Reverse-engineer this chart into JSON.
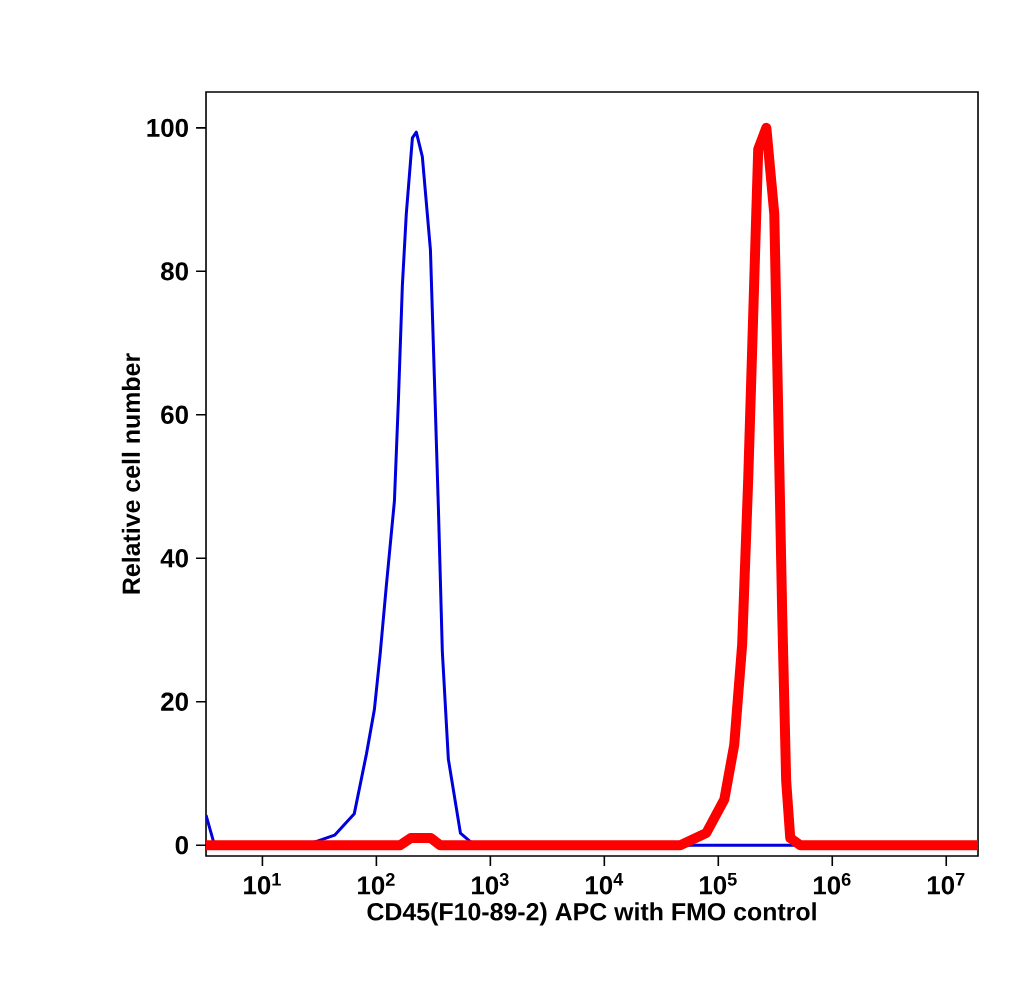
{
  "chart_data": {
    "type": "line",
    "xlabel": "CD45(F10-89-2) APC with FMO control",
    "ylabel": "Relative cell number",
    "log": "x",
    "grid": false,
    "xlim": [
      3.2,
      19000000
    ],
    "ylim": [
      -1.5,
      105
    ],
    "xticks": [
      {
        "value": 10,
        "label": "10$^{1}$"
      },
      {
        "value": 100,
        "label": "10$^{2}$"
      },
      {
        "value": 1000,
        "label": "10$^{3}$"
      },
      {
        "value": 10000,
        "label": "10$^{4}$"
      },
      {
        "value": 100000,
        "label": "10$^{5}$"
      },
      {
        "value": 1000000,
        "label": "10$^{6}$"
      },
      {
        "value": 10000000,
        "label": "10$^{7}$"
      }
    ],
    "yticks": [
      0,
      20,
      40,
      60,
      80,
      100
    ],
    "series": [
      {
        "color": "#0000dd",
        "x": [
          3.2,
          3.8,
          14,
          24,
          43,
          64,
          82,
          96,
          108,
          122,
          144,
          156,
          169,
          183,
          207,
          224,
          253,
          298,
          323,
          350,
          379,
          428,
          546,
          724,
          1080,
          19000000
        ],
        "values": [
          4.2,
          0,
          0,
          0,
          1.4,
          4.4,
          12.8,
          18.9,
          26.7,
          36,
          48,
          62,
          78,
          88,
          98.6,
          99.4,
          96,
          83,
          65,
          47,
          27,
          12,
          1.7,
          0,
          0,
          0
        ]
      },
      {
        "color": "#ff0000",
        "x": [
          3.2,
          162,
          200,
          300,
          363,
          46400,
          78500,
          113000,
          138000,
          162000,
          183000,
          207000,
          224000,
          264000,
          310000,
          336000,
          364000,
          394000,
          428000,
          524000,
          19000000
        ],
        "values": [
          0,
          0,
          1,
          1,
          0,
          0,
          1.7,
          6.4,
          14,
          28,
          51,
          79,
          97,
          100,
          88,
          60,
          32,
          9,
          1,
          0,
          0
        ]
      }
    ]
  }
}
